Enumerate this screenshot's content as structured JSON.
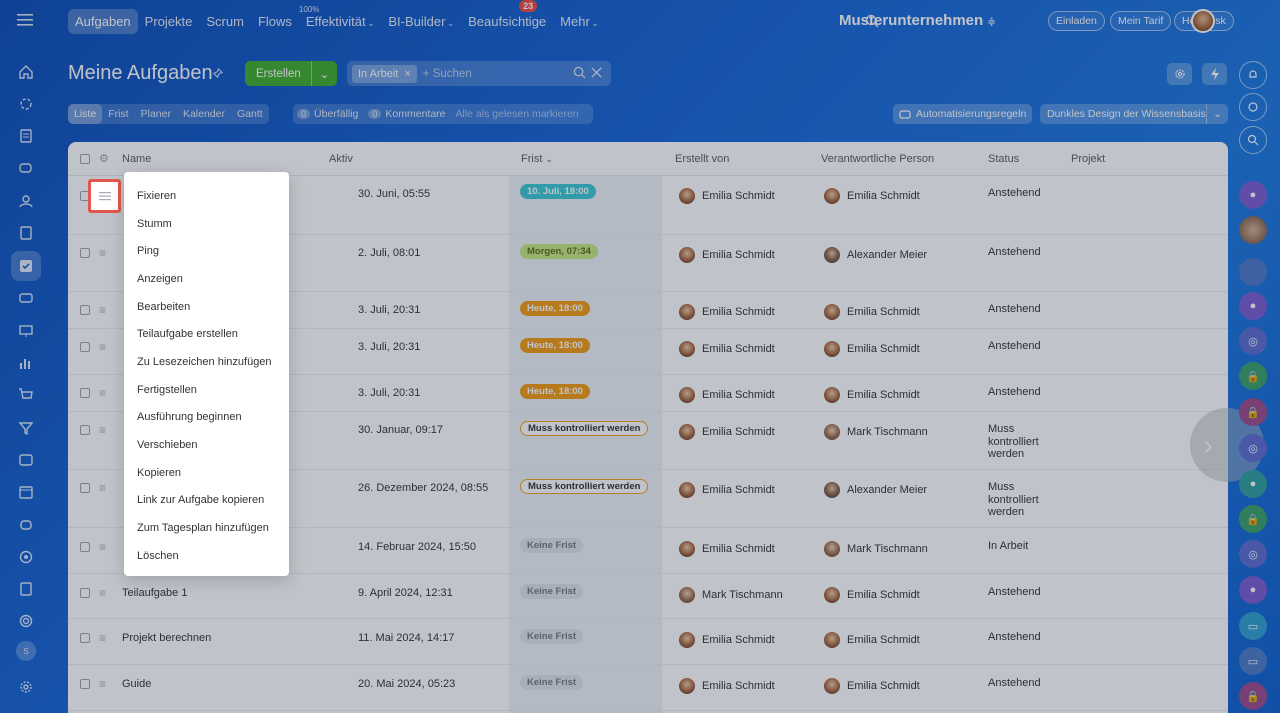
{
  "topnav": {
    "items": [
      {
        "label": "Aufgaben",
        "active": true
      },
      {
        "label": "Projekte"
      },
      {
        "label": "Scrum"
      },
      {
        "label": "Flows"
      },
      {
        "label": "Effektivität",
        "sup": "100%"
      },
      {
        "label": "BI-Builder"
      },
      {
        "label": "Beaufsichtige",
        "badge": "23"
      },
      {
        "label": "Mehr"
      }
    ],
    "company": "Musterunternehmen",
    "invite": "Einladen",
    "plan": "Mein Tarif",
    "helpdesk": "Helpdesk"
  },
  "header": {
    "title": "Meine Aufgaben",
    "create_label": "Erstellen",
    "filter_chip": "In Arbeit",
    "search_placeholder": "+ Suchen"
  },
  "view_tabs": [
    "Liste",
    "Frist",
    "Planer",
    "Kalender",
    "Gantt"
  ],
  "counters": {
    "overdue_count": "0",
    "overdue_label": "Überfällig",
    "comments_count": "0",
    "comments_label": "Kommentare",
    "mark_read": "Alle als gelesen markieren"
  },
  "toolbar": {
    "automation": "Automatisierungsregeln",
    "dark_design": "Dunkles Design der Wissensbasis"
  },
  "columns": {
    "name": "Name",
    "active": "Aktiv",
    "deadline": "Frist",
    "created_by": "Erstellt von",
    "responsible": "Verantwortliche Person",
    "status": "Status",
    "project": "Projekt"
  },
  "rows": [
    {
      "name": "",
      "active": "30. Juni, 05:55",
      "deadline": "10. Juli, 18:00",
      "deadline_style": "teal",
      "created_by": "Emilia Schmidt",
      "responsible": "Emilia Schmidt",
      "status": "Anstehend"
    },
    {
      "name": "",
      "active": "2. Juli, 08:01",
      "deadline": "Morgen, 07:34",
      "deadline_style": "green",
      "created_by": "Emilia Schmidt",
      "responsible": "Alexander Meier",
      "status": "Anstehend"
    },
    {
      "name": "",
      "active": "3. Juli, 20:31",
      "deadline": "Heute, 18:00",
      "deadline_style": "orange",
      "created_by": "Emilia Schmidt",
      "responsible": "Emilia Schmidt",
      "status": "Anstehend"
    },
    {
      "name": "",
      "active": "3. Juli, 20:31",
      "deadline": "Heute, 18:00",
      "deadline_style": "orange",
      "created_by": "Emilia Schmidt",
      "responsible": "Emilia Schmidt",
      "status": "Anstehend"
    },
    {
      "name": "",
      "active": "3. Juli, 20:31",
      "deadline": "Heute, 18:00",
      "deadline_style": "orange",
      "created_by": "Emilia Schmidt",
      "responsible": "Emilia Schmidt",
      "status": "Anstehend"
    },
    {
      "name": "",
      "active": "30. Januar, 09:17",
      "deadline": "Muss kontrolliert werden",
      "deadline_style": "outline",
      "created_by": "Emilia Schmidt",
      "responsible": "Mark Tischmann",
      "status": "Muss kontrolliert werden"
    },
    {
      "name": "",
      "active": "26. Dezember 2024, 08:55",
      "deadline": "Muss kontrolliert werden",
      "deadline_style": "outline",
      "created_by": "Emilia Schmidt",
      "responsible": "Alexander Meier",
      "status": "Muss kontrolliert werden"
    },
    {
      "name": "",
      "active": "14. Februar 2024, 15:50",
      "deadline": "Keine Frist",
      "deadline_style": "gray",
      "created_by": "Emilia Schmidt",
      "responsible": "Mark Tischmann",
      "status": "In Arbeit"
    },
    {
      "name": "Teilaufgabe 1",
      "active": "9. April 2024, 12:31",
      "deadline": "Keine Frist",
      "deadline_style": "gray",
      "created_by": "Mark Tischmann",
      "responsible": "Emilia Schmidt",
      "status": "Anstehend"
    },
    {
      "name": "Projekt berechnen",
      "active": "11. Mai 2024, 14:17",
      "deadline": "Keine Frist",
      "deadline_style": "gray",
      "created_by": "Emilia Schmidt",
      "responsible": "Emilia Schmidt",
      "status": "Anstehend"
    },
    {
      "name": "Guide",
      "active": "20. Mai 2024, 05:23",
      "deadline": "Keine Frist",
      "deadline_style": "gray",
      "created_by": "Emilia Schmidt",
      "responsible": "Emilia Schmidt",
      "status": "Anstehend"
    }
  ],
  "context_menu": [
    "Fixieren",
    "Stumm",
    "Ping",
    "Anzeigen",
    "Bearbeiten",
    "Teilaufgabe erstellen",
    "Zu Lesezeichen hinzufügen",
    "Fertigstellen",
    "Ausführung beginnen",
    "Verschieben",
    "Kopieren",
    "Link zur Aufgabe kopieren",
    "Zum Tagesplan hinzufügen",
    "Löschen"
  ],
  "left_rail_user_initial": "S",
  "colors": {
    "accent_blue": "#1565d8",
    "create_green": "#3fad2a",
    "highlight_red": "#e2574c"
  }
}
